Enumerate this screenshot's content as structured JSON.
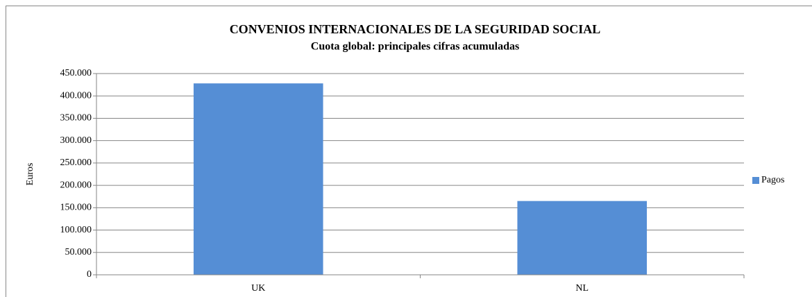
{
  "chart_data": {
    "type": "bar",
    "title": "CONVENIOS INTERNACIONALES DE LA SEGURIDAD SOCIAL",
    "subtitle": "Cuota global: principales cifras acumuladas",
    "y_label": "Euros",
    "categories": [
      "UK",
      "NL"
    ],
    "series": [
      {
        "name": "Pagos",
        "color": "#558ed5",
        "values": [
          428000,
          165000
        ]
      }
    ],
    "ylim": [
      0,
      450000
    ],
    "yticks": [
      0,
      {
        "value": 50000,
        "label": "50.000"
      },
      {
        "value": 100000,
        "label": "100.000"
      },
      {
        "value": 150000,
        "label": "150.000"
      },
      {
        "value": 200000,
        "label": "200.000"
      },
      {
        "value": 250000,
        "label": "250.000"
      },
      {
        "value": 300000,
        "label": "300.000"
      },
      {
        "value": 350000,
        "label": "350.000"
      },
      {
        "value": 400000,
        "label": "400.000"
      },
      {
        "value": 450000,
        "label": "450.000"
      }
    ],
    "grid": true,
    "legend": "right"
  }
}
